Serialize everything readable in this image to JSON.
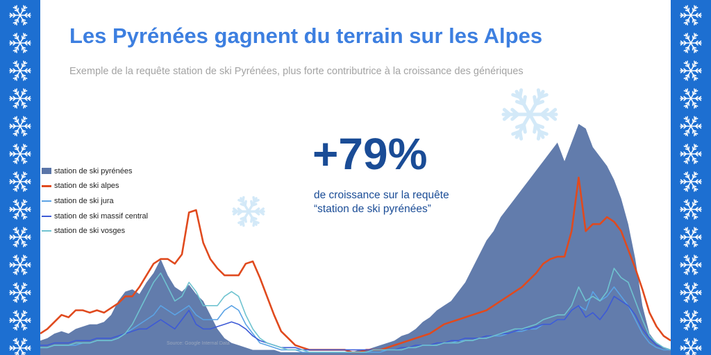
{
  "title": "Les Pyrénées gagnent du terrain sur les Alpes",
  "subtitle": "Exemple de la requête station de ski Pyrénées, plus forte contributrice à la croissance des génériques",
  "highlight": {
    "value": "+79%",
    "line1": "de croissance sur la requête",
    "line2": "“station de ski pyrénées”"
  },
  "source": "Source: Google Internal Data",
  "colors": {
    "border": "#1d6fd1",
    "title": "#3d7fe0",
    "highlight": "#1a4c96"
  },
  "decorations": [
    "snowflake-icon"
  ],
  "chart_data": {
    "type": "area",
    "title": "",
    "xlabel": "",
    "ylabel": "",
    "ylim": [
      0,
      100
    ],
    "grid": false,
    "legend_position": "left",
    "x": [
      0,
      1,
      2,
      3,
      4,
      5,
      6,
      7,
      8,
      9,
      10,
      11,
      12,
      13,
      14,
      15,
      16,
      17,
      18,
      19,
      20,
      21,
      22,
      23,
      24,
      25,
      26,
      27,
      28,
      29,
      30,
      31,
      32,
      33,
      34,
      35,
      36,
      37,
      38,
      39,
      40,
      41,
      42,
      43,
      44,
      45,
      46,
      47,
      48,
      49,
      50,
      51,
      52,
      53,
      54,
      55,
      56,
      57,
      58,
      59,
      60,
      61,
      62,
      63,
      64,
      65,
      66,
      67,
      68,
      69,
      70,
      71,
      72,
      73,
      74,
      75,
      76,
      77,
      78,
      79,
      80,
      81,
      82,
      83,
      84,
      85,
      86,
      87,
      88,
      89
    ],
    "series": [
      {
        "name": "station de ski pyrénées",
        "style": "area",
        "color": "#5a75a8",
        "values": [
          5,
          6,
          8,
          9,
          8,
          10,
          11,
          12,
          12,
          13,
          16,
          22,
          26,
          27,
          25,
          30,
          34,
          40,
          33,
          28,
          26,
          29,
          25,
          22,
          16,
          10,
          6,
          4,
          3,
          2,
          1,
          1,
          1,
          1,
          0,
          0,
          0,
          0,
          0,
          0,
          0,
          0,
          0,
          0,
          0,
          1,
          1,
          2,
          3,
          4,
          5,
          7,
          8,
          10,
          13,
          15,
          18,
          20,
          22,
          26,
          30,
          36,
          42,
          48,
          52,
          58,
          62,
          66,
          70,
          74,
          78,
          82,
          86,
          90,
          82,
          90,
          98,
          96,
          88,
          84,
          80,
          74,
          66,
          55,
          40,
          20,
          8,
          4,
          2,
          1
        ]
      },
      {
        "name": "station de ski alpes",
        "style": "line",
        "color": "#e04a1e",
        "values": [
          8,
          10,
          13,
          16,
          15,
          18,
          18,
          17,
          18,
          17,
          19,
          21,
          24,
          24,
          28,
          33,
          38,
          40,
          40,
          38,
          42,
          60,
          61,
          47,
          40,
          36,
          33,
          33,
          33,
          38,
          39,
          32,
          24,
          16,
          9,
          6,
          3,
          2,
          1,
          1,
          1,
          1,
          1,
          1,
          0,
          0,
          1,
          1,
          1,
          2,
          3,
          4,
          5,
          6,
          7,
          8,
          10,
          12,
          13,
          14,
          15,
          16,
          17,
          18,
          20,
          22,
          24,
          26,
          28,
          31,
          34,
          38,
          40,
          41,
          41,
          52,
          75,
          52,
          55,
          55,
          58,
          56,
          52,
          44,
          36,
          27,
          17,
          11,
          7,
          5
        ]
      },
      {
        "name": "station de ski jura",
        "style": "line",
        "color": "#5ba3e5",
        "values": [
          2,
          2,
          3,
          3,
          3,
          3,
          4,
          4,
          5,
          5,
          5,
          6,
          8,
          10,
          12,
          14,
          16,
          20,
          18,
          16,
          18,
          20,
          16,
          14,
          14,
          14,
          18,
          20,
          18,
          12,
          8,
          4,
          3,
          2,
          1,
          1,
          1,
          0,
          0,
          0,
          0,
          0,
          0,
          0,
          0,
          0,
          0,
          0,
          0,
          1,
          1,
          1,
          2,
          2,
          3,
          3,
          3,
          4,
          4,
          5,
          5,
          5,
          6,
          6,
          7,
          7,
          8,
          9,
          9,
          10,
          10,
          12,
          12,
          14,
          14,
          18,
          20,
          18,
          26,
          22,
          24,
          28,
          24,
          20,
          14,
          8,
          4,
          2,
          1,
          1
        ]
      },
      {
        "name": "station de ski massif central",
        "style": "line",
        "color": "#3d5ad6",
        "values": [
          3,
          3,
          4,
          4,
          4,
          5,
          5,
          5,
          6,
          6,
          6,
          7,
          8,
          9,
          10,
          10,
          12,
          14,
          12,
          10,
          14,
          18,
          12,
          10,
          10,
          11,
          12,
          13,
          12,
          10,
          7,
          5,
          4,
          3,
          2,
          2,
          2,
          1,
          1,
          1,
          1,
          1,
          1,
          1,
          1,
          1,
          1,
          1,
          1,
          1,
          1,
          2,
          2,
          3,
          3,
          3,
          4,
          4,
          5,
          5,
          6,
          6,
          6,
          7,
          7,
          8,
          8,
          9,
          10,
          10,
          11,
          12,
          12,
          14,
          14,
          18,
          20,
          15,
          17,
          14,
          18,
          24,
          22,
          20,
          16,
          10,
          6,
          3,
          2,
          1
        ]
      },
      {
        "name": "station de ski vosges",
        "style": "line",
        "color": "#6fc3d0",
        "values": [
          2,
          2,
          3,
          3,
          3,
          4,
          4,
          4,
          5,
          5,
          5,
          6,
          8,
          12,
          18,
          24,
          30,
          34,
          28,
          22,
          24,
          30,
          26,
          20,
          20,
          20,
          24,
          26,
          24,
          16,
          10,
          6,
          4,
          3,
          2,
          1,
          1,
          1,
          0,
          0,
          0,
          0,
          0,
          0,
          0,
          0,
          0,
          1,
          1,
          1,
          1,
          1,
          2,
          2,
          3,
          3,
          3,
          4,
          4,
          4,
          5,
          5,
          6,
          6,
          7,
          8,
          9,
          10,
          10,
          11,
          12,
          14,
          15,
          16,
          16,
          20,
          28,
          22,
          24,
          22,
          26,
          36,
          32,
          30,
          22,
          14,
          7,
          4,
          2,
          1
        ]
      }
    ]
  }
}
